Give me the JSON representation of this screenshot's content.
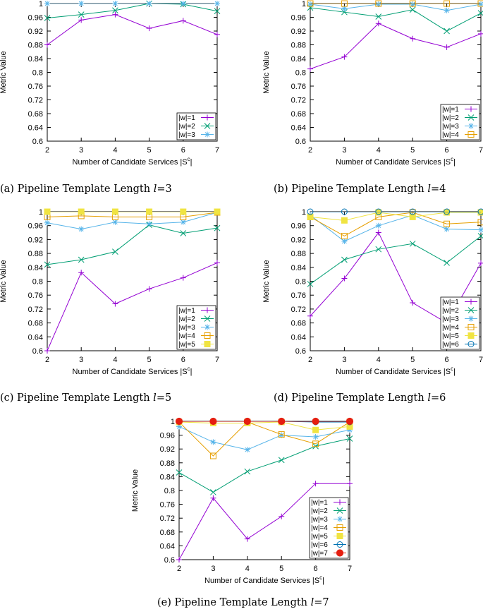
{
  "colors": {
    "w1": "#9400d3",
    "w2": "#009e73",
    "w3": "#56b4e9",
    "w4": "#e69f00",
    "w5": "#f0e442",
    "w6": "#0072b2",
    "w7": "#e51e10"
  },
  "chart_data": [
    {
      "type": "line",
      "id": "a",
      "caption_label": "(a)",
      "caption_text": "Pipeline Template Length",
      "caption_var": "l",
      "caption_eq": "=3",
      "xlabel": "Number of Candidate Services |S",
      "xlabel_sup": "c",
      "xlabel_end": "|",
      "ylabel": "Metric Value",
      "x": [
        2,
        3,
        4,
        5,
        6,
        7
      ],
      "xlim": [
        2,
        7
      ],
      "ylim": [
        0.6,
        1.0
      ],
      "yticks": [
        "0.6",
        "0.64",
        "0.68",
        "0.72",
        "0.76",
        "0.8",
        "0.84",
        "0.88",
        "0.92",
        "0.96",
        "1"
      ],
      "series": [
        {
          "name": "|w|=1",
          "values": [
            0.88,
            0.952,
            0.968,
            0.928,
            0.95,
            0.91
          ],
          "marker": "plus",
          "color": "w1"
        },
        {
          "name": "|w|=2",
          "values": [
            0.958,
            0.968,
            0.98,
            1.0,
            0.998,
            0.978
          ],
          "marker": "x",
          "color": "w2"
        },
        {
          "name": "|w|=3",
          "values": [
            1.0,
            1.0,
            1.0,
            1.0,
            1.0,
            1.0
          ],
          "marker": "star",
          "color": "w3"
        }
      ]
    },
    {
      "type": "line",
      "id": "b",
      "caption_label": "(b)",
      "caption_text": "Pipeline Template Length",
      "caption_var": "l",
      "caption_eq": "=4",
      "xlabel": "Number of Candidate Services |S",
      "xlabel_sup": "c",
      "xlabel_end": "|",
      "ylabel": "Metric Value",
      "x": [
        2,
        3,
        4,
        5,
        6,
        7
      ],
      "xlim": [
        2,
        7
      ],
      "ylim": [
        0.6,
        1.0
      ],
      "yticks": [
        "0.6",
        "0.64",
        "0.68",
        "0.72",
        "0.76",
        "0.8",
        "0.84",
        "0.88",
        "0.92",
        "0.96",
        "1"
      ],
      "series": [
        {
          "name": "|w|=1",
          "values": [
            0.81,
            0.845,
            0.942,
            0.898,
            0.873,
            0.912
          ],
          "marker": "plus",
          "color": "w1"
        },
        {
          "name": "|w|=2",
          "values": [
            0.988,
            0.975,
            0.962,
            0.982,
            0.92,
            0.972
          ],
          "marker": "x",
          "color": "w2"
        },
        {
          "name": "|w|=3",
          "values": [
            0.998,
            0.985,
            0.998,
            0.998,
            0.98,
            0.998
          ],
          "marker": "star",
          "color": "w3"
        },
        {
          "name": "|w|=4",
          "values": [
            1.0,
            1.0,
            1.0,
            1.0,
            1.0,
            1.0
          ],
          "marker": "square",
          "color": "w4"
        }
      ]
    },
    {
      "type": "line",
      "id": "c",
      "caption_label": "(c)",
      "caption_text": "Pipeline Template Length",
      "caption_var": "l",
      "caption_eq": "=5",
      "xlabel": "Number of Candidate Services |S",
      "xlabel_sup": "c",
      "xlabel_end": "|",
      "ylabel": "Metric Value",
      "x": [
        2,
        3,
        4,
        5,
        6,
        7
      ],
      "xlim": [
        2,
        7
      ],
      "ylim": [
        0.6,
        1.0
      ],
      "yticks": [
        "0.6",
        "0.64",
        "0.68",
        "0.72",
        "0.76",
        "0.8",
        "0.84",
        "0.88",
        "0.92",
        "0.96",
        "1"
      ],
      "series": [
        {
          "name": "|w|=1",
          "values": [
            0.6,
            0.825,
            0.735,
            0.778,
            0.81,
            0.853
          ],
          "marker": "plus",
          "color": "w1"
        },
        {
          "name": "|w|=2",
          "values": [
            0.848,
            0.862,
            0.885,
            0.962,
            0.938,
            0.953
          ],
          "marker": "x",
          "color": "w2"
        },
        {
          "name": "|w|=3",
          "values": [
            0.968,
            0.95,
            0.97,
            0.965,
            0.97,
            0.998
          ],
          "marker": "star",
          "color": "w3"
        },
        {
          "name": "|w|=4",
          "values": [
            0.985,
            0.988,
            0.985,
            0.985,
            0.985,
            0.998
          ],
          "marker": "square",
          "color": "w4"
        },
        {
          "name": "|w|=5",
          "values": [
            1.0,
            1.0,
            1.0,
            1.0,
            1.0,
            1.0
          ],
          "marker": "fsquare",
          "color": "w5"
        }
      ]
    },
    {
      "type": "line",
      "id": "d",
      "caption_label": "(d)",
      "caption_text": "Pipeline Template Length",
      "caption_var": "l",
      "caption_eq": "=6",
      "xlabel": "Number of Candidate Services |S",
      "xlabel_sup": "c",
      "xlabel_end": "|",
      "ylabel": "Metric Value",
      "x": [
        2,
        3,
        4,
        5,
        6,
        7
      ],
      "xlim": [
        2,
        7
      ],
      "ylim": [
        0.6,
        1.0
      ],
      "yticks": [
        "0.6",
        "0.64",
        "0.68",
        "0.72",
        "0.76",
        "0.8",
        "0.84",
        "0.88",
        "0.92",
        "0.96",
        "1"
      ],
      "series": [
        {
          "name": "|w|=1",
          "values": [
            0.7,
            0.808,
            0.94,
            0.738,
            0.68,
            0.852
          ],
          "marker": "plus",
          "color": "w1"
        },
        {
          "name": "|w|=2",
          "values": [
            0.792,
            0.862,
            0.892,
            0.908,
            0.853,
            0.93
          ],
          "marker": "x",
          "color": "w2"
        },
        {
          "name": "|w|=3",
          "values": [
            0.99,
            0.915,
            0.96,
            0.99,
            0.95,
            0.948
          ],
          "marker": "star",
          "color": "w3"
        },
        {
          "name": "|w|=4",
          "values": [
            0.985,
            0.93,
            0.985,
            0.998,
            0.965,
            0.97
          ],
          "marker": "square",
          "color": "w4"
        },
        {
          "name": "|w|=5",
          "values": [
            0.985,
            0.975,
            0.998,
            0.985,
            0.998,
            0.998
          ],
          "marker": "fsquare",
          "color": "w5"
        },
        {
          "name": "|w|=6",
          "values": [
            1.0,
            1.0,
            1.0,
            1.0,
            1.0,
            1.0
          ],
          "marker": "circle",
          "color": "w6"
        }
      ]
    },
    {
      "type": "line",
      "id": "e",
      "caption_label": "(e)",
      "caption_text": "Pipeline Template Length",
      "caption_var": "l",
      "caption_eq": "=7",
      "xlabel": "Number of Candidate Services |S",
      "xlabel_sup": "c",
      "xlabel_end": "|",
      "ylabel": "Metric Value",
      "x": [
        2,
        3,
        4,
        5,
        6,
        7
      ],
      "xlim": [
        2,
        7
      ],
      "ylim": [
        0.6,
        1.0
      ],
      "yticks": [
        "0.6",
        "0.64",
        "0.68",
        "0.72",
        "0.76",
        "0.8",
        "0.84",
        "0.88",
        "0.92",
        "0.96",
        "1"
      ],
      "series": [
        {
          "name": "|w|=1",
          "values": [
            0.6,
            0.778,
            0.66,
            0.725,
            0.82,
            0.82
          ],
          "marker": "plus",
          "color": "w1"
        },
        {
          "name": "|w|=2",
          "values": [
            0.852,
            0.795,
            0.855,
            0.888,
            0.928,
            0.95
          ],
          "marker": "x",
          "color": "w2"
        },
        {
          "name": "|w|=3",
          "values": [
            0.985,
            0.94,
            0.918,
            0.96,
            0.955,
            0.975
          ],
          "marker": "star",
          "color": "w3"
        },
        {
          "name": "|w|=4",
          "values": [
            0.998,
            0.9,
            0.998,
            0.962,
            0.935,
            0.998
          ],
          "marker": "square",
          "color": "w4"
        },
        {
          "name": "|w|=5",
          "values": [
            0.998,
            0.995,
            0.995,
            0.998,
            0.975,
            0.985
          ],
          "marker": "fsquare",
          "color": "w5"
        },
        {
          "name": "|w|=6",
          "values": [
            1.0,
            1.0,
            1.0,
            1.0,
            0.998,
            0.998
          ],
          "marker": "circle",
          "color": "w6"
        },
        {
          "name": "|w|=7",
          "values": [
            1.0,
            1.0,
            1.0,
            1.0,
            1.0,
            1.0
          ],
          "marker": "fcircle",
          "color": "w7"
        }
      ]
    }
  ]
}
